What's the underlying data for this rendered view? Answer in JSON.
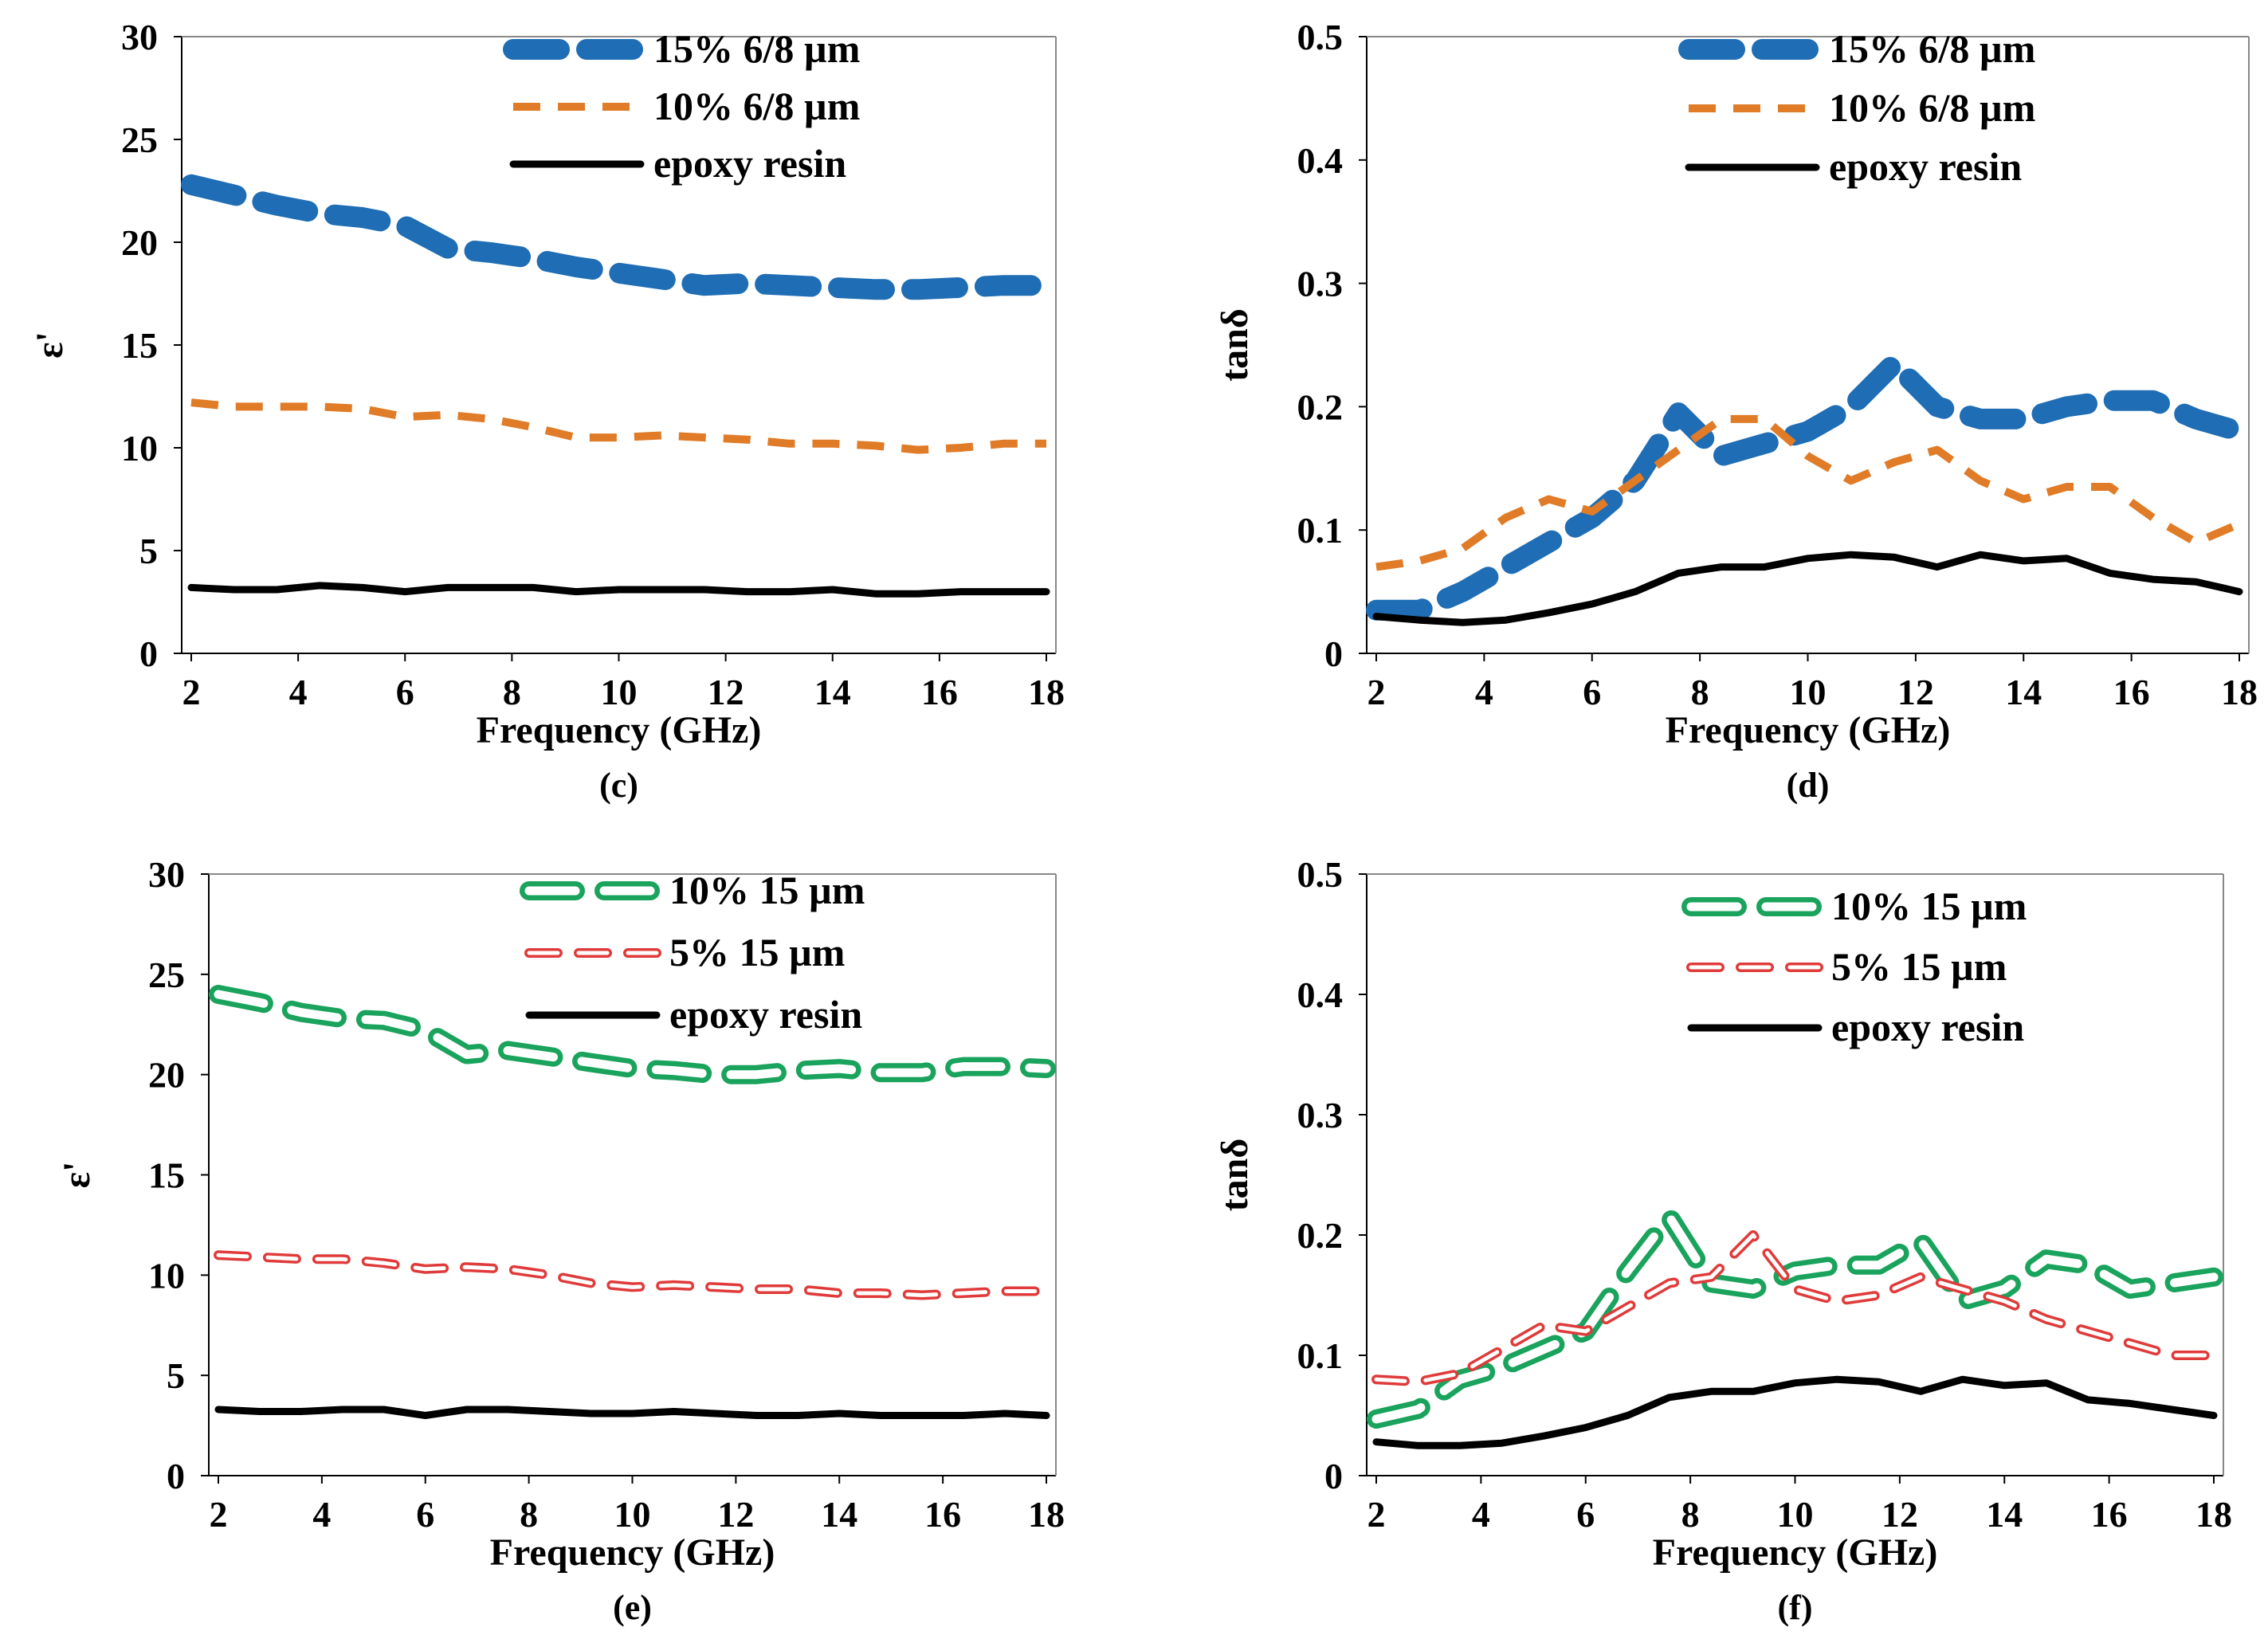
{
  "figure": {
    "charts": [
      {
        "panel": "(c)",
        "type": "line",
        "xlabel": "Frequency (GHz)",
        "ylabel": "ε'",
        "xlim": [
          2,
          18
        ],
        "ylim": [
          0,
          30
        ],
        "xticks": [
          "2",
          "4",
          "6",
          "8",
          "10",
          "12",
          "14",
          "16",
          "18"
        ],
        "yticks": [
          "0",
          "5",
          "10",
          "15",
          "20",
          "25",
          "30"
        ],
        "x": [
          2,
          2.8,
          3.6,
          4.4,
          5.2,
          6.0,
          6.8,
          7.6,
          8.4,
          9.2,
          10.0,
          10.8,
          11.6,
          12.4,
          13.2,
          14.0,
          14.8,
          15.6,
          16.4,
          17.2,
          18.0
        ],
        "series": [
          {
            "name": "15% 6/8 µm",
            "color": "#1f6db4",
            "style": "thick-dash",
            "values": [
              22.8,
              22.3,
              21.8,
              21.4,
              21.2,
              20.8,
              19.7,
              19.5,
              19.2,
              18.8,
              18.5,
              18.2,
              17.9,
              18.0,
              17.9,
              17.8,
              17.7,
              17.7,
              17.8,
              17.9,
              17.9
            ]
          },
          {
            "name": "10% 6/8 µm",
            "color": "#e07b27",
            "style": "dash",
            "values": [
              12.2,
              12.0,
              12.0,
              12.0,
              11.9,
              11.5,
              11.6,
              11.4,
              11.0,
              10.5,
              10.5,
              10.6,
              10.5,
              10.4,
              10.2,
              10.2,
              10.1,
              9.9,
              10.0,
              10.2,
              10.2
            ]
          },
          {
            "name": "epoxy resin",
            "color": "#000000",
            "style": "solid",
            "values": [
              3.2,
              3.1,
              3.1,
              3.3,
              3.2,
              3.0,
              3.2,
              3.2,
              3.2,
              3.0,
              3.1,
              3.1,
              3.1,
              3.0,
              3.0,
              3.1,
              2.9,
              2.9,
              3.0,
              3.0,
              3.0
            ]
          }
        ]
      },
      {
        "panel": "(d)",
        "type": "line",
        "xlabel": "Frequency (GHz)",
        "ylabel": "tanδ",
        "xlim": [
          2,
          18
        ],
        "ylim": [
          0,
          0.5
        ],
        "xticks": [
          "2",
          "4",
          "6",
          "8",
          "10",
          "12",
          "14",
          "16",
          "18"
        ],
        "yticks": [
          "0",
          "0.1",
          "0.2",
          "0.3",
          "0.4",
          "0.5"
        ],
        "x": [
          2,
          2.8,
          3.6,
          4.4,
          5.2,
          6.0,
          6.8,
          7.6,
          8.4,
          9.2,
          10.0,
          10.8,
          11.6,
          12.4,
          13.2,
          14.0,
          14.8,
          15.6,
          16.4,
          17.2,
          18.0
        ],
        "series": [
          {
            "name": "15% 6/8 µm",
            "color": "#1f6db4",
            "style": "thick-dash",
            "values": [
              0.035,
              0.035,
              0.05,
              0.07,
              0.09,
              0.11,
              0.14,
              0.195,
              0.16,
              0.17,
              0.18,
              0.2,
              0.235,
              0.2,
              0.19,
              0.19,
              0.2,
              0.205,
              0.205,
              0.19,
              0.18
            ]
          },
          {
            "name": "10% 6/8 µm",
            "color": "#e07b27",
            "style": "dash",
            "values": [
              0.07,
              0.075,
              0.085,
              0.11,
              0.125,
              0.115,
              0.14,
              0.165,
              0.19,
              0.19,
              0.16,
              0.14,
              0.155,
              0.165,
              0.14,
              0.125,
              0.135,
              0.135,
              0.11,
              0.09,
              0.105
            ]
          },
          {
            "name": "epoxy resin",
            "color": "#000000",
            "style": "solid",
            "values": [
              0.03,
              0.027,
              0.025,
              0.027,
              0.033,
              0.04,
              0.05,
              0.065,
              0.07,
              0.07,
              0.077,
              0.08,
              0.078,
              0.07,
              0.08,
              0.075,
              0.077,
              0.065,
              0.06,
              0.058,
              0.05
            ]
          }
        ]
      },
      {
        "panel": "(e)",
        "type": "line",
        "xlabel": "Frequency (GHz)",
        "ylabel": "ε'",
        "xlim": [
          2,
          18
        ],
        "ylim": [
          0,
          30
        ],
        "xticks": [
          "2",
          "4",
          "6",
          "8",
          "10",
          "12",
          "14",
          "16",
          "18"
        ],
        "yticks": [
          "0",
          "5",
          "10",
          "15",
          "20",
          "25",
          "30"
        ],
        "x": [
          2,
          2.8,
          3.6,
          4.4,
          5.2,
          6.0,
          6.8,
          7.6,
          8.4,
          9.2,
          10.0,
          10.8,
          11.6,
          12.4,
          13.2,
          14.0,
          14.8,
          15.6,
          16.4,
          17.2,
          18.0
        ],
        "series": [
          {
            "name": "10% 15 µm",
            "color": "#1aa35c",
            "style": "hollow-thick-dash",
            "values": [
              24.0,
              23.6,
              23.1,
              22.8,
              22.7,
              22.2,
              21.0,
              21.2,
              20.9,
              20.6,
              20.3,
              20.2,
              20.0,
              20.0,
              20.2,
              20.3,
              20.1,
              20.1,
              20.4,
              20.4,
              20.3
            ]
          },
          {
            "name": "5% 15 µm",
            "color": "#e03a3a",
            "style": "hollow-dash",
            "values": [
              11.0,
              10.9,
              10.8,
              10.8,
              10.6,
              10.3,
              10.4,
              10.3,
              10.0,
              9.6,
              9.4,
              9.5,
              9.4,
              9.3,
              9.3,
              9.1,
              9.1,
              9.0,
              9.1,
              9.2,
              9.2
            ]
          },
          {
            "name": "epoxy resin",
            "color": "#000000",
            "style": "solid",
            "values": [
              3.3,
              3.2,
              3.2,
              3.3,
              3.3,
              3.0,
              3.3,
              3.3,
              3.2,
              3.1,
              3.1,
              3.2,
              3.1,
              3.0,
              3.0,
              3.1,
              3.0,
              3.0,
              3.0,
              3.1,
              3.0
            ]
          }
        ]
      },
      {
        "panel": "(f)",
        "type": "line",
        "xlabel": "Frequency (GHz)",
        "ylabel": "tanδ",
        "xlim": [
          2,
          18
        ],
        "ylim": [
          0,
          0.5
        ],
        "xticks": [
          "2",
          "4",
          "6",
          "8",
          "10",
          "12",
          "14",
          "16",
          "18"
        ],
        "yticks": [
          "0",
          "0.1",
          "0.2",
          "0.3",
          "0.4",
          "0.5"
        ],
        "x": [
          2,
          2.8,
          3.6,
          4.4,
          5.2,
          6.0,
          6.8,
          7.6,
          8.4,
          9.2,
          10.0,
          10.8,
          11.6,
          12.4,
          13.2,
          14.0,
          14.8,
          15.6,
          16.4,
          17.2,
          18.0
        ],
        "series": [
          {
            "name": "10% 15 µm",
            "color": "#1aa35c",
            "style": "hollow-thick-dash",
            "values": [
              0.047,
              0.055,
              0.08,
              0.09,
              0.105,
              0.12,
              0.17,
              0.215,
              0.16,
              0.155,
              0.17,
              0.175,
              0.175,
              0.195,
              0.145,
              0.155,
              0.18,
              0.175,
              0.155,
              0.16,
              0.165
            ]
          },
          {
            "name": "5% 15 µm",
            "color": "#e03a3a",
            "style": "hollow-dash",
            "values": [
              0.08,
              0.078,
              0.085,
              0.105,
              0.125,
              0.12,
              0.14,
              0.16,
              0.165,
              0.2,
              0.155,
              0.145,
              0.15,
              0.165,
              0.155,
              0.145,
              0.13,
              0.12,
              0.11,
              0.1,
              0.1
            ]
          },
          {
            "name": "epoxy resin",
            "color": "#000000",
            "style": "solid",
            "values": [
              0.028,
              0.025,
              0.025,
              0.027,
              0.033,
              0.04,
              0.05,
              0.065,
              0.07,
              0.07,
              0.077,
              0.08,
              0.078,
              0.07,
              0.08,
              0.075,
              0.077,
              0.063,
              0.06,
              0.055,
              0.05
            ]
          }
        ]
      }
    ]
  },
  "chart_data": [
    {
      "ref": "figure.charts.0"
    },
    {
      "ref": "figure.charts.1"
    },
    {
      "ref": "figure.charts.2"
    },
    {
      "ref": "figure.charts.3"
    }
  ]
}
